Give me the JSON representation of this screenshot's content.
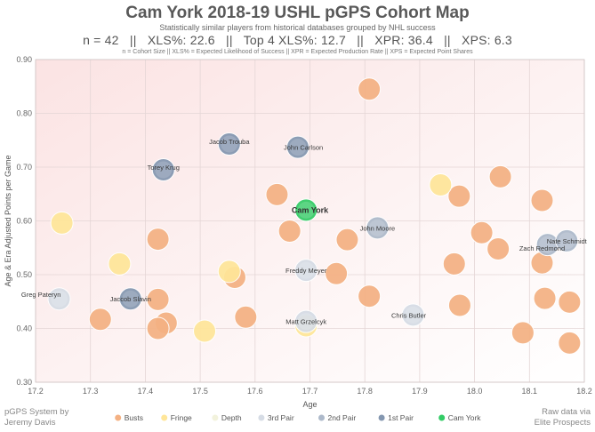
{
  "header": {
    "title": "Cam York 2018-19 USHL pGPS Cohort Map",
    "subtitle": "Statistically similar players from historical databases grouped by NHL success",
    "stats": "n = 42   ||   XLS%: 22.6   ||   Top 4 XLS%: 12.7   ||   XPR: 36.4   ||   XPS: 6.3",
    "note": "n = Cohort Size || XLS% = Expected Likelihood of Success || XPR = Expected Production Rate || XPS = Expected Point Shares"
  },
  "footer": {
    "left_line1": "pGPS System by",
    "left_line2": "Jeremy Davis",
    "right_line1": "Raw data via",
    "right_line2": "Elite Prospects"
  },
  "colors": {
    "Busts": "#f4b183",
    "Fringe": "#ffe699",
    "Depth": "#f2f2dc",
    "3rd Pair": "#d6dce5",
    "2nd Pair": "#adb9ca",
    "1st Pair": "#8497b0",
    "Cam York": "#33cc66"
  },
  "chart_data": {
    "type": "scatter",
    "xlabel": "Age",
    "ylabel": "Age & Era Adjusted Points per Game",
    "xlim": [
      17.2,
      18.2
    ],
    "ylim": [
      0.3,
      0.9
    ],
    "xticks": [
      "17.2",
      "17.3",
      "17.4",
      "17.5",
      "17.6",
      "17.7",
      "17.8",
      "17.9",
      "18.0",
      "18.1",
      "18.2"
    ],
    "yticks": [
      "0.30",
      "0.40",
      "0.50",
      "0.60",
      "0.70",
      "0.80",
      "0.90"
    ],
    "grid": true,
    "legend_position": "bottom",
    "legend": [
      "Busts",
      "Fringe",
      "Depth",
      "3rd Pair",
      "2nd Pair",
      "1st Pair",
      "Cam York"
    ],
    "points": [
      {
        "x": 17.808,
        "y": 0.845,
        "cat": "Busts"
      },
      {
        "x": 17.64,
        "y": 0.649,
        "cat": "Busts"
      },
      {
        "x": 17.972,
        "y": 0.646,
        "cat": "Busts"
      },
      {
        "x": 18.047,
        "y": 0.682,
        "cat": "Busts"
      },
      {
        "x": 18.123,
        "y": 0.638,
        "cat": "Busts"
      },
      {
        "x": 17.423,
        "y": 0.566,
        "cat": "Busts"
      },
      {
        "x": 17.663,
        "y": 0.581,
        "cat": "Busts"
      },
      {
        "x": 17.768,
        "y": 0.565,
        "cat": "Busts"
      },
      {
        "x": 18.013,
        "y": 0.578,
        "cat": "Busts"
      },
      {
        "x": 18.043,
        "y": 0.548,
        "cat": "Busts"
      },
      {
        "x": 17.963,
        "y": 0.52,
        "cat": "Busts"
      },
      {
        "x": 18.123,
        "y": 0.522,
        "cat": "Busts"
      },
      {
        "x": 17.563,
        "y": 0.495,
        "cat": "Busts"
      },
      {
        "x": 17.748,
        "y": 0.502,
        "cat": "Busts"
      },
      {
        "x": 17.423,
        "y": 0.454,
        "cat": "Busts"
      },
      {
        "x": 17.808,
        "y": 0.46,
        "cat": "Busts"
      },
      {
        "x": 18.128,
        "y": 0.456,
        "cat": "Busts"
      },
      {
        "x": 18.173,
        "y": 0.449,
        "cat": "Busts"
      },
      {
        "x": 17.973,
        "y": 0.443,
        "cat": "Busts"
      },
      {
        "x": 17.318,
        "y": 0.417,
        "cat": "Busts"
      },
      {
        "x": 17.438,
        "y": 0.41,
        "cat": "Busts"
      },
      {
        "x": 17.423,
        "y": 0.4,
        "cat": "Busts"
      },
      {
        "x": 17.583,
        "y": 0.421,
        "cat": "Busts"
      },
      {
        "x": 18.088,
        "y": 0.392,
        "cat": "Busts"
      },
      {
        "x": 18.173,
        "y": 0.373,
        "cat": "Busts"
      },
      {
        "x": 17.248,
        "y": 0.596,
        "cat": "Fringe"
      },
      {
        "x": 17.938,
        "y": 0.667,
        "cat": "Fringe"
      },
      {
        "x": 17.353,
        "y": 0.52,
        "cat": "Fringe"
      },
      {
        "x": 17.553,
        "y": 0.506,
        "cat": "Fringe"
      },
      {
        "x": 17.508,
        "y": 0.395,
        "cat": "Fringe"
      },
      {
        "x": 17.693,
        "y": 0.405,
        "cat": "Fringe"
      },
      {
        "x": 17.243,
        "y": 0.455,
        "cat": "3rd Pair",
        "label": "Greg Pateryn",
        "lx": 17.21,
        "ly": 0.464
      },
      {
        "x": 17.693,
        "y": 0.508,
        "cat": "3rd Pair",
        "label": "Freddy Meyer",
        "lx": 17.693,
        "ly": 0.508
      },
      {
        "x": 17.693,
        "y": 0.413,
        "cat": "3rd Pair",
        "label": "Matt Grzelcyk",
        "lx": 17.693,
        "ly": 0.413
      },
      {
        "x": 17.888,
        "y": 0.425,
        "cat": "3rd Pair",
        "label": "Chris Butler",
        "lx": 17.88,
        "ly": 0.425
      },
      {
        "x": 18.133,
        "y": 0.556,
        "cat": "2nd Pair",
        "label": "Zach Redmond",
        "lx": 18.123,
        "ly": 0.55
      },
      {
        "x": 18.168,
        "y": 0.563,
        "cat": "2nd Pair",
        "label": "Nate Schmidt",
        "lx": 18.168,
        "ly": 0.563
      },
      {
        "x": 17.823,
        "y": 0.587,
        "cat": "2nd Pair",
        "label": "John Moore",
        "lx": 17.823,
        "ly": 0.587
      },
      {
        "x": 17.433,
        "y": 0.695,
        "cat": "1st Pair",
        "label": "Torey Krug",
        "lx": 17.433,
        "ly": 0.7
      },
      {
        "x": 17.553,
        "y": 0.743,
        "cat": "1st Pair",
        "label": "Jacob Trouba",
        "lx": 17.553,
        "ly": 0.748
      },
      {
        "x": 17.678,
        "y": 0.737,
        "cat": "1st Pair",
        "label": "John Carlson",
        "lx": 17.688,
        "ly": 0.737
      },
      {
        "x": 17.373,
        "y": 0.455,
        "cat": "1st Pair",
        "label": "Jaccob Slavin",
        "lx": 17.373,
        "ly": 0.455
      },
      {
        "x": 17.693,
        "y": 0.62,
        "cat": "Cam York",
        "label": "Cam York",
        "lx": 17.7,
        "ly": 0.62
      }
    ]
  }
}
